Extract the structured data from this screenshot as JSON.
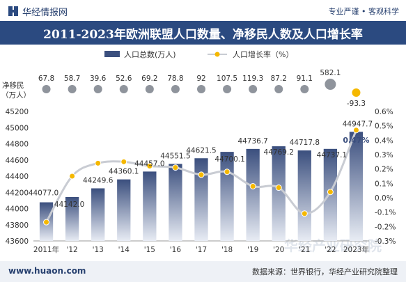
{
  "header": {
    "brand": "华经情报网",
    "tagline": "专业严谨 • 客观科学"
  },
  "title": "2011-2023年欧洲联盟人口数量、净移民人数及人口增长率",
  "footer": {
    "url": "www.huaon.com",
    "source": "数据来源：世界银行，华经产业研究院整理"
  },
  "watermark": "华经产业研究院",
  "colors": {
    "title_bg": "#2b4a80",
    "bar_dark": "#3b4f7e",
    "bar_light": "#e8ecf4",
    "line": "#c9ccd3",
    "marker": "#f5b800",
    "migr_marker": "#8f949c",
    "migr_marker_2023": "#f5b800",
    "text": "#333333"
  },
  "chart_data": {
    "type": "bar",
    "categories": [
      "2011年",
      "'12",
      "'13",
      "'14",
      "'15",
      "'16",
      "'17",
      "'18",
      "'19",
      "'20",
      "'21",
      "'22",
      "2023年"
    ],
    "series": [
      {
        "name": "人口总数(万人)",
        "type": "bar",
        "axis": "left",
        "values": [
          44077.0,
          44142.0,
          44249.6,
          44360.1,
          44457.0,
          44551.5,
          44621.5,
          44700.1,
          44736.7,
          44769.2,
          44717.8,
          44737.1,
          44947.7
        ],
        "labels": [
          "44077.0",
          "44142.0",
          "44249.6",
          "44360.1",
          "44457.0",
          "44551.5",
          "44621.5",
          "44700.1",
          "44736.7",
          "44769.2",
          "44717.8",
          "44737.1",
          "44947.7"
        ]
      },
      {
        "name": "人口增长率（%）",
        "type": "line",
        "axis": "right",
        "values": [
          -0.17,
          0.15,
          0.24,
          0.25,
          0.22,
          0.21,
          0.16,
          0.18,
          0.08,
          0.07,
          -0.11,
          0.04,
          0.47
        ],
        "highlight_label": "0.47%"
      },
      {
        "type": "markers",
        "values": [
          67.8,
          58.7,
          39.6,
          52.6,
          69.2,
          78.8,
          92,
          107.5,
          119.3,
          87.2,
          91.1,
          582.1,
          -93.3
        ],
        "labels": [
          "67.8",
          "58.7",
          "39.6",
          "52.6",
          "69.2",
          "78.8",
          "92",
          "107.5",
          "119.3",
          "87.2",
          "91.1",
          "582.1",
          "-93.3"
        ]
      }
    ],
    "migration_axis_label": "净移民\n（万人）",
    "y_left": {
      "min": 43600,
      "max": 45200,
      "step": 200,
      "ticks": [
        "43600",
        "43800",
        "44000",
        "44200",
        "44400",
        "44600",
        "44800",
        "45000",
        "45200"
      ]
    },
    "y_right": {
      "min": -0.3,
      "max": 0.6,
      "step": 0.1,
      "ticks": [
        "-0.3%",
        "-0.2%",
        "-0.1%",
        "0.0%",
        "0.1%",
        "0.2%",
        "0.3%",
        "0.4%",
        "0.5%",
        "0.6%"
      ]
    },
    "legend": {
      "position": "top",
      "bar_label": "人口总数(万人)",
      "line_label": "人口增长率（%）"
    },
    "grid": false
  }
}
